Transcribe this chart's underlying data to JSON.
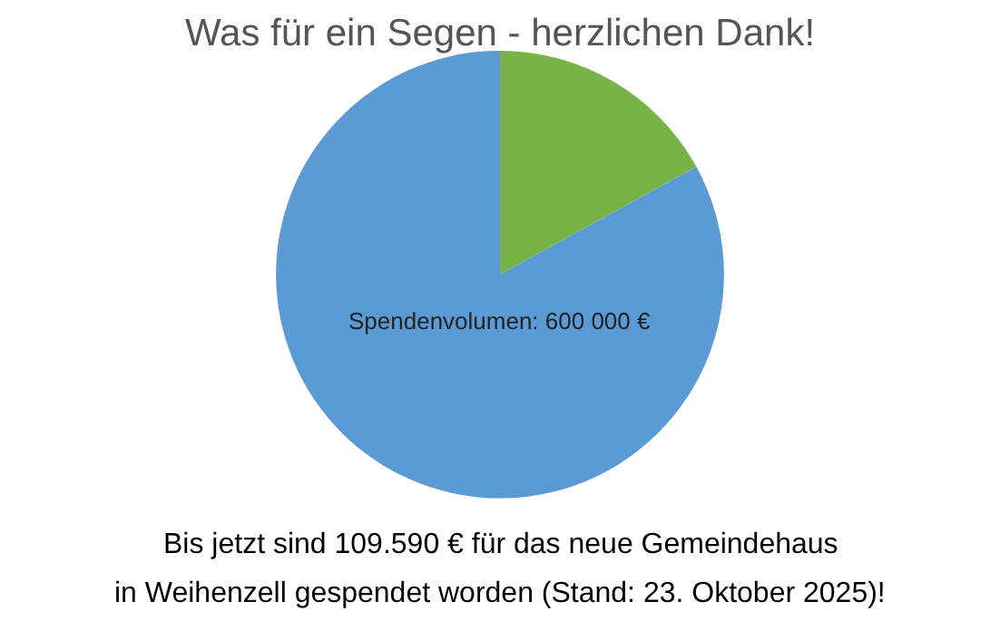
{
  "chart_data": {
    "type": "pie",
    "title": "Was für ein Segen - herzlichen Dank!",
    "categories": [
      null,
      "Spendenvolumen: 600 000 €"
    ],
    "values": [
      17,
      83
    ],
    "colors": [
      "#77b346",
      "#5b9bd5"
    ],
    "legend": false,
    "annotations": [
      "Bis jetzt sind 109.590 € für das neue Gemeindehaus",
      "in Weihenzell gespendet worden (Stand: 23. Oktober 2025)!"
    ]
  }
}
